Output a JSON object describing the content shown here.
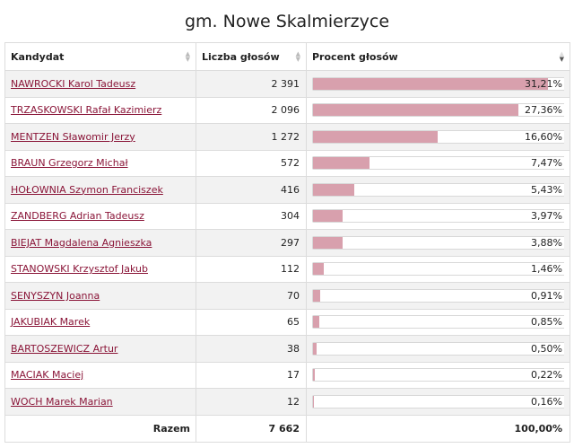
{
  "title": "gm. Nowe Skalmierzyce",
  "headers": {
    "candidate": "Kandydat",
    "votes": "Liczba głosów",
    "percent": "Procent głosów"
  },
  "rows": [
    {
      "name": "NAWROCKI Karol Tadeusz",
      "votes": "2 391",
      "percent_label": "31,21%",
      "percent": 31.21
    },
    {
      "name": "TRZASKOWSKI Rafał Kazimierz",
      "votes": "2 096",
      "percent_label": "27,36%",
      "percent": 27.36
    },
    {
      "name": "MENTZEN Sławomir Jerzy",
      "votes": "1 272",
      "percent_label": "16,60%",
      "percent": 16.6
    },
    {
      "name": "BRAUN Grzegorz Michał",
      "votes": "572",
      "percent_label": "7,47%",
      "percent": 7.47
    },
    {
      "name": "HOŁOWNIA Szymon Franciszek",
      "votes": "416",
      "percent_label": "5,43%",
      "percent": 5.43
    },
    {
      "name": "ZANDBERG Adrian Tadeusz",
      "votes": "304",
      "percent_label": "3,97%",
      "percent": 3.97
    },
    {
      "name": "BIEJAT Magdalena Agnieszka",
      "votes": "297",
      "percent_label": "3,88%",
      "percent": 3.88
    },
    {
      "name": "STANOWSKI Krzysztof Jakub",
      "votes": "112",
      "percent_label": "1,46%",
      "percent": 1.46
    },
    {
      "name": "SENYSZYN Joanna",
      "votes": "70",
      "percent_label": "0,91%",
      "percent": 0.91
    },
    {
      "name": "JAKUBIAK Marek",
      "votes": "65",
      "percent_label": "0,85%",
      "percent": 0.85
    },
    {
      "name": "BARTOSZEWICZ Artur",
      "votes": "38",
      "percent_label": "0,50%",
      "percent": 0.5
    },
    {
      "name": "MACIAK Maciej",
      "votes": "17",
      "percent_label": "0,22%",
      "percent": 0.22
    },
    {
      "name": "WOCH Marek Marian",
      "votes": "12",
      "percent_label": "0,16%",
      "percent": 0.16
    }
  ],
  "footer": {
    "label": "Razem",
    "votes": "7 662",
    "percent": "100,00%"
  },
  "colors": {
    "bar": "#d8a0ad",
    "link": "#8a1538"
  }
}
